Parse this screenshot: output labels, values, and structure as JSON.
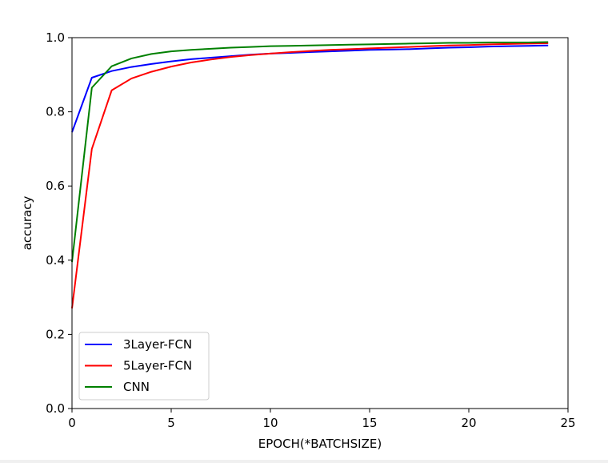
{
  "chart_data": {
    "type": "line",
    "title": "",
    "xlabel": "EPOCH(*BATCHSIZE)",
    "ylabel": "accuracy",
    "xlim": [
      0,
      25
    ],
    "ylim": [
      0.0,
      1.0
    ],
    "xticks": [
      0,
      5,
      10,
      15,
      20,
      25
    ],
    "yticks": [
      0.0,
      0.2,
      0.4,
      0.6,
      0.8,
      1.0
    ],
    "xtick_labels": [
      "0",
      "5",
      "10",
      "15",
      "20",
      "25"
    ],
    "ytick_labels": [
      "0.0",
      "0.2",
      "0.4",
      "0.6",
      "0.8",
      "1.0"
    ],
    "grid": false,
    "legend_position": "lower-left",
    "x": [
      0,
      1,
      2,
      3,
      4,
      5,
      6,
      7,
      8,
      9,
      10,
      11,
      12,
      13,
      14,
      15,
      16,
      17,
      18,
      19,
      20,
      21,
      22,
      23,
      24
    ],
    "series": [
      {
        "name": "3Layer-FCN",
        "color": "#0000ff",
        "values": [
          0.745,
          0.892,
          0.91,
          0.921,
          0.929,
          0.936,
          0.942,
          0.946,
          0.95,
          0.954,
          0.957,
          0.959,
          0.961,
          0.963,
          0.965,
          0.967,
          0.968,
          0.969,
          0.971,
          0.973,
          0.974,
          0.976,
          0.977,
          0.978,
          0.979
        ]
      },
      {
        "name": "5Layer-FCN",
        "color": "#ff0000",
        "values": [
          0.27,
          0.7,
          0.858,
          0.89,
          0.908,
          0.922,
          0.933,
          0.941,
          0.948,
          0.953,
          0.957,
          0.961,
          0.964,
          0.967,
          0.969,
          0.971,
          0.973,
          0.975,
          0.977,
          0.979,
          0.98,
          0.982,
          0.983,
          0.984,
          0.985
        ]
      },
      {
        "name": "CNN",
        "color": "#008000",
        "values": [
          0.395,
          0.865,
          0.923,
          0.944,
          0.956,
          0.963,
          0.967,
          0.97,
          0.973,
          0.975,
          0.977,
          0.978,
          0.979,
          0.98,
          0.981,
          0.982,
          0.983,
          0.984,
          0.985,
          0.986,
          0.986,
          0.987,
          0.987,
          0.987,
          0.988
        ]
      }
    ]
  }
}
